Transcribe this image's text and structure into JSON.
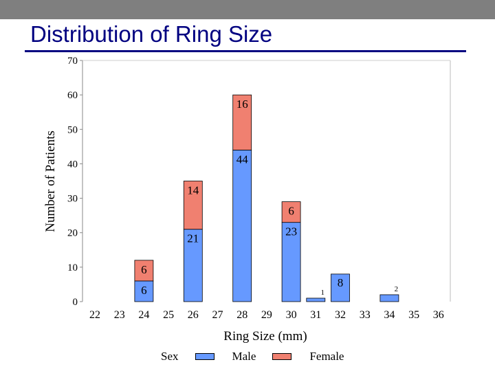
{
  "slide": {
    "title": "Distribution of Ring Size"
  },
  "colors": {
    "topbar": "#7f7f7f",
    "title": "#000080",
    "male": "#6699FF",
    "female": "#F08070"
  },
  "chart_data": {
    "type": "bar",
    "stacked": true,
    "xlabel": "Ring Size (mm)",
    "ylabel": "Number of Patients",
    "ylim": [
      0,
      70
    ],
    "yticks": [
      0,
      10,
      20,
      30,
      40,
      50,
      60,
      70
    ],
    "categories": [
      "22",
      "23",
      "24",
      "25",
      "26",
      "27",
      "28",
      "29",
      "30",
      "31",
      "32",
      "33",
      "34",
      "35",
      "36"
    ],
    "legend_title": "Sex",
    "legend_position": "bottom",
    "series": [
      {
        "name": "Male",
        "color": "#6699FF",
        "values": [
          0,
          0,
          6,
          0,
          21,
          0,
          44,
          0,
          23,
          1,
          8,
          0,
          2,
          0,
          0
        ]
      },
      {
        "name": "Female",
        "color": "#F08070",
        "values": [
          0,
          0,
          6,
          0,
          14,
          0,
          16,
          0,
          6,
          0,
          0,
          0,
          0,
          0,
          0
        ]
      }
    ]
  }
}
